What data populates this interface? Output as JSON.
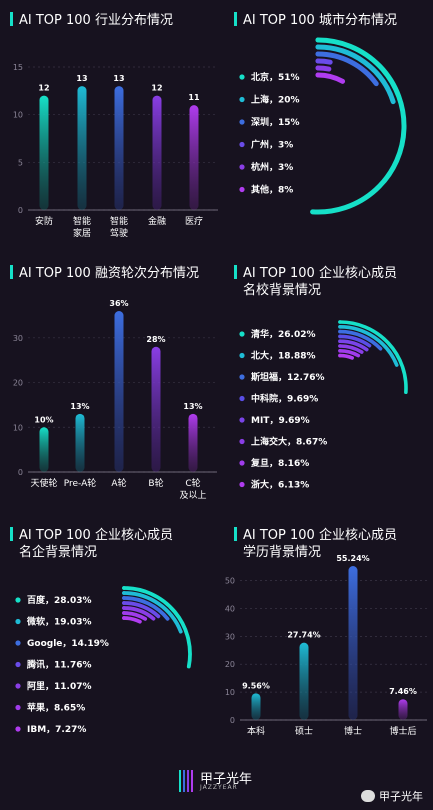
{
  "colors": {
    "accent": "#16e0c8",
    "grid": "#3a3446",
    "axis": "#8a8496",
    "label": "#ffffff"
  },
  "chart_data": [
    {
      "id": "industry",
      "type": "bar",
      "title": "AI TOP 100 行业分布情况",
      "categories": [
        [
          "安防"
        ],
        [
          "智能",
          "家居"
        ],
        [
          "智能",
          "驾驶"
        ],
        [
          "金融"
        ],
        [
          "医疗"
        ]
      ],
      "values": [
        12,
        13,
        13,
        12,
        11
      ],
      "value_labels": [
        "12",
        "13",
        "13",
        "12",
        "11"
      ],
      "yticks": [
        0,
        5,
        10,
        15
      ],
      "ylim": [
        0,
        15
      ]
    },
    {
      "id": "city",
      "type": "pie",
      "title": "AI TOP 100 城市分布情况",
      "items": [
        {
          "name": "北京",
          "pct": 51,
          "label": "北京，51%"
        },
        {
          "name": "上海",
          "pct": 20,
          "label": "上海，20%"
        },
        {
          "name": "深圳",
          "pct": 15,
          "label": "深圳，15%"
        },
        {
          "name": "广州",
          "pct": 3,
          "label": "广州，3%"
        },
        {
          "name": "杭州",
          "pct": 3,
          "label": "杭州，3%"
        },
        {
          "name": "其他",
          "pct": 8,
          "label": "其他，8%"
        }
      ]
    },
    {
      "id": "funding",
      "type": "bar",
      "title": "AI TOP 100 融资轮次分布情况",
      "categories": [
        [
          "天使轮"
        ],
        [
          "Pre-A轮"
        ],
        [
          "A轮"
        ],
        [
          "B轮"
        ],
        [
          "C轮",
          "及以上"
        ]
      ],
      "values": [
        10,
        13,
        36,
        28,
        13
      ],
      "value_labels": [
        "10%",
        "13%",
        "36%",
        "28%",
        "13%"
      ],
      "yticks": [
        0,
        10,
        20,
        30
      ],
      "ylim": [
        0,
        36
      ]
    },
    {
      "id": "school",
      "type": "pie",
      "title": "AI TOP 100 企业核心成员",
      "subtitle": "名校背景情况",
      "items": [
        {
          "name": "清华",
          "pct": 26.02,
          "label": "清华，26.02%"
        },
        {
          "name": "北大",
          "pct": 18.88,
          "label": "北大，18.88%"
        },
        {
          "name": "斯坦福",
          "pct": 12.76,
          "label": "斯坦福，12.76%"
        },
        {
          "name": "中科院",
          "pct": 9.69,
          "label": "中科院，9.69%"
        },
        {
          "name": "MIT",
          "pct": 9.69,
          "label": "MIT，9.69%"
        },
        {
          "name": "上海交大",
          "pct": 8.67,
          "label": "上海交大，8.67%"
        },
        {
          "name": "复旦",
          "pct": 8.16,
          "label": "复旦，8.16%"
        },
        {
          "name": "浙大",
          "pct": 6.13,
          "label": "浙大，6.13%"
        }
      ]
    },
    {
      "id": "company",
      "type": "pie",
      "title": "AI TOP 100 企业核心成员",
      "subtitle": "名企背景情况",
      "items": [
        {
          "name": "百度",
          "pct": 28.03,
          "label": "百度，28.03%"
        },
        {
          "name": "微软",
          "pct": 19.03,
          "label": "微软，19.03%"
        },
        {
          "name": "Google",
          "pct": 14.19,
          "label": "Google，14.19%"
        },
        {
          "name": "腾讯",
          "pct": 11.76,
          "label": "腾讯，11.76%"
        },
        {
          "name": "阿里",
          "pct": 11.07,
          "label": "阿里，11.07%"
        },
        {
          "name": "苹果",
          "pct": 8.65,
          "label": "苹果，8.65%"
        },
        {
          "name": "IBM",
          "pct": 7.27,
          "label": "IBM，7.27%"
        }
      ]
    },
    {
      "id": "degree",
      "type": "bar",
      "title": "AI TOP 100 企业核心成员",
      "subtitle": "学历背景情况",
      "categories": [
        [
          "本科"
        ],
        [
          "硕士"
        ],
        [
          "博士"
        ],
        [
          "博士后"
        ]
      ],
      "values": [
        9.56,
        27.74,
        55.24,
        7.46
      ],
      "value_labels": [
        "9.56%",
        "27.74%",
        "55.24%",
        "7.46%"
      ],
      "yticks": [
        0,
        10,
        20,
        30,
        40,
        50
      ],
      "ylim": [
        0,
        55.24
      ]
    }
  ],
  "footer": {
    "logo_text": "甲子光年",
    "logo_sub": "JAZZYEAR",
    "wechat": "甲子光年"
  }
}
